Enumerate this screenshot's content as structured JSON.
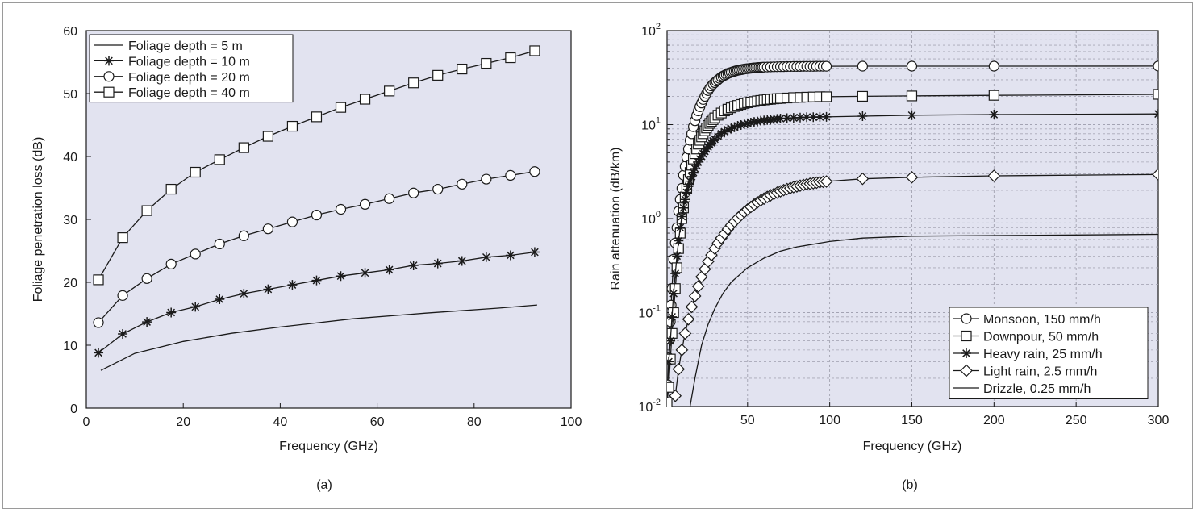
{
  "chart_data": [
    {
      "id": "a",
      "type": "line",
      "caption": "(a)",
      "xlabel": "Frequency (GHz)",
      "ylabel": "Foliage penetration loss (dB)",
      "xlim": [
        0,
        100
      ],
      "ylim": [
        0,
        60
      ],
      "xticks": [
        0,
        20,
        40,
        60,
        80,
        100
      ],
      "yticks": [
        0,
        10,
        20,
        30,
        40,
        50,
        60
      ],
      "grid": false,
      "legend": "top-left",
      "series": [
        {
          "name": "Foliage depth = 5 m",
          "marker": "none",
          "x": [
            3,
            10,
            20,
            30,
            40,
            55,
            70,
            85,
            93
          ],
          "y": [
            6.0,
            8.7,
            10.6,
            11.9,
            12.9,
            14.2,
            15.1,
            15.9,
            16.4
          ]
        },
        {
          "name": "Foliage depth = 10 m",
          "marker": "star",
          "x": [
            2.5,
            7.5,
            12.5,
            17.5,
            22.5,
            27.5,
            32.5,
            37.5,
            42.5,
            47.5,
            52.5,
            57.5,
            62.5,
            67.5,
            72.5,
            77.5,
            82.5,
            87.5,
            92.5
          ],
          "y": [
            8.8,
            11.8,
            13.7,
            15.2,
            16.1,
            17.3,
            18.2,
            18.9,
            19.6,
            20.3,
            21.0,
            21.5,
            22.0,
            22.7,
            23.0,
            23.4,
            24.0,
            24.3,
            24.8
          ]
        },
        {
          "name": "Foliage depth = 20 m",
          "marker": "circle",
          "x": [
            2.5,
            7.5,
            12.5,
            17.5,
            22.5,
            27.5,
            32.5,
            37.5,
            42.5,
            47.5,
            52.5,
            57.5,
            62.5,
            67.5,
            72.5,
            77.5,
            82.5,
            87.5,
            92.5
          ],
          "y": [
            13.6,
            17.9,
            20.6,
            22.9,
            24.5,
            26.1,
            27.4,
            28.5,
            29.6,
            30.7,
            31.6,
            32.4,
            33.3,
            34.2,
            34.8,
            35.6,
            36.4,
            37.0,
            37.6
          ]
        },
        {
          "name": "Foliage depth = 40 m",
          "marker": "square",
          "x": [
            2.5,
            7.5,
            12.5,
            17.5,
            22.5,
            27.5,
            32.5,
            37.5,
            42.5,
            47.5,
            52.5,
            57.5,
            62.5,
            67.5,
            72.5,
            77.5,
            82.5,
            87.5,
            92.5
          ],
          "y": [
            20.4,
            27.1,
            31.4,
            34.8,
            37.5,
            39.5,
            41.4,
            43.2,
            44.8,
            46.3,
            47.8,
            49.1,
            50.4,
            51.7,
            52.9,
            53.9,
            54.8,
            55.7,
            56.8
          ]
        }
      ]
    },
    {
      "id": "b",
      "type": "line",
      "caption": "(b)",
      "xlabel": "Frequency (GHz)",
      "ylabel": "Rain attenuation (dB/km)",
      "xscale": "linear",
      "yscale": "log",
      "xlim": [
        1,
        300
      ],
      "ylim": [
        0.01,
        100
      ],
      "xticks": [
        50,
        100,
        150,
        200,
        250,
        300
      ],
      "yticks": [
        {
          "value": 100,
          "base": "10",
          "exp": "2"
        },
        {
          "value": 10,
          "base": "10",
          "exp": "1"
        },
        {
          "value": 1,
          "base": "10",
          "exp": "0"
        },
        {
          "value": 0.1,
          "base": "10",
          "exp": "-1"
        },
        {
          "value": 0.01,
          "base": "10",
          "exp": "-2"
        }
      ],
      "grid": true,
      "legend": "bottom-right",
      "series": [
        {
          "name": "Monsoon, 150 mm/h",
          "marker": "circle",
          "x": [
            1,
            1.5,
            2,
            2.5,
            3,
            3.5,
            4,
            5,
            6,
            7,
            8,
            9,
            10,
            11,
            12,
            13,
            14,
            15,
            16,
            17,
            18,
            19,
            20,
            21,
            22,
            23,
            24,
            25,
            26,
            27,
            28,
            29,
            30,
            31,
            32,
            33,
            34,
            35,
            36,
            37,
            38,
            39,
            40,
            41,
            42,
            43,
            44,
            45,
            46,
            47,
            48,
            49,
            50,
            51,
            52,
            53,
            54,
            55,
            56,
            57,
            58,
            59,
            60,
            62,
            64,
            66,
            68,
            70,
            72,
            74,
            76,
            78,
            80,
            82,
            84,
            86,
            88,
            90,
            92,
            94,
            96,
            98,
            120,
            150,
            200,
            300
          ],
          "y": [
            0.011,
            0.017,
            0.033,
            0.052,
            0.08,
            0.12,
            0.18,
            0.37,
            0.55,
            0.8,
            1.2,
            1.6,
            2.1,
            2.9,
            3.6,
            4.5,
            5.5,
            6.8,
            8.0,
            9.5,
            11,
            12.5,
            14,
            15.5,
            17,
            18.5,
            20,
            21.5,
            23,
            24.5,
            25.8,
            27,
            28,
            29,
            30,
            31,
            32,
            32.8,
            33.5,
            34.2,
            34.9,
            35.5,
            36,
            36.5,
            37,
            37.4,
            37.8,
            38.1,
            38.4,
            38.7,
            39,
            39.2,
            39.4,
            39.6,
            39.8,
            40,
            40.2,
            40.3,
            40.5,
            40.6,
            40.7,
            40.8,
            40.9,
            41,
            41.1,
            41.2,
            41.3,
            41.4,
            41.4,
            41.5,
            41.5,
            41.6,
            41.6,
            41.6,
            41.7,
            41.7,
            41.7,
            41.7,
            41.8,
            41.8,
            41.8,
            41.8,
            41.9,
            41.9,
            41.9,
            42
          ]
        },
        {
          "name": "Downpour, 50 mm/h",
          "marker": "square",
          "x": [
            1,
            2,
            3,
            4,
            5,
            6,
            7,
            8,
            9,
            10,
            11,
            12,
            13,
            14,
            15,
            16,
            17,
            18,
            19,
            20,
            21,
            22,
            23,
            24,
            25,
            26,
            27,
            28,
            29,
            30,
            32,
            34,
            36,
            38,
            40,
            42,
            44,
            46,
            48,
            50,
            52,
            54,
            56,
            58,
            60,
            62,
            64,
            66,
            68,
            70,
            74,
            78,
            82,
            86,
            90,
            94,
            98,
            120,
            150,
            200,
            300
          ],
          "y": [
            0.011,
            0.016,
            0.032,
            0.06,
            0.1,
            0.18,
            0.3,
            0.48,
            0.7,
            1.0,
            1.3,
            1.7,
            2.1,
            2.6,
            3.1,
            3.7,
            4.3,
            4.9,
            5.5,
            6.2,
            6.8,
            7.4,
            8.0,
            8.6,
            9.2,
            9.8,
            10.3,
            10.8,
            11.3,
            11.8,
            12.6,
            13.3,
            14.0,
            14.6,
            15.1,
            15.6,
            16.0,
            16.4,
            16.8,
            17.1,
            17.4,
            17.6,
            17.9,
            18.1,
            18.3,
            18.5,
            18.6,
            18.8,
            18.9,
            19.0,
            19.2,
            19.4,
            19.5,
            19.6,
            19.7,
            19.8,
            19.8,
            20.0,
            20.2,
            20.5,
            21
          ]
        },
        {
          "name": "Heavy rain, 25 mm/h",
          "marker": "star",
          "x": [
            2,
            3,
            4,
            5,
            6,
            7,
            8,
            9,
            10,
            11,
            12,
            13,
            14,
            15,
            16,
            17,
            18,
            19,
            20,
            21,
            22,
            23,
            24,
            25,
            26,
            27,
            28,
            29,
            30,
            32,
            34,
            36,
            38,
            40,
            42,
            44,
            46,
            48,
            50,
            52,
            54,
            56,
            58,
            60,
            62,
            64,
            66,
            68,
            70,
            74,
            78,
            82,
            86,
            90,
            94,
            98,
            120,
            150,
            200,
            300
          ],
          "y": [
            0.03,
            0.05,
            0.09,
            0.16,
            0.26,
            0.4,
            0.58,
            0.8,
            1.05,
            1.3,
            1.6,
            1.9,
            2.2,
            2.5,
            2.8,
            3.1,
            3.4,
            3.7,
            4.0,
            4.3,
            4.6,
            4.9,
            5.2,
            5.5,
            5.8,
            6.1,
            6.4,
            6.7,
            7.0,
            7.5,
            8.0,
            8.4,
            8.8,
            9.1,
            9.4,
            9.7,
            9.9,
            10.1,
            10.3,
            10.5,
            10.7,
            10.8,
            11.0,
            11.1,
            11.2,
            11.3,
            11.4,
            11.5,
            11.6,
            11.7,
            11.8,
            11.9,
            12.0,
            12.0,
            12.1,
            12.1,
            12.3,
            12.6,
            12.8,
            13.0
          ]
        },
        {
          "name": "Light rain, 2.5 mm/h",
          "marker": "diamond",
          "x": [
            6,
            8,
            10,
            12,
            14,
            16,
            18,
            20,
            22,
            24,
            26,
            28,
            30,
            32,
            34,
            36,
            38,
            40,
            42,
            44,
            46,
            48,
            50,
            52,
            54,
            56,
            58,
            60,
            62,
            64,
            66,
            68,
            70,
            72,
            74,
            76,
            78,
            80,
            82,
            84,
            86,
            88,
            90,
            92,
            94,
            96,
            98,
            120,
            150,
            200,
            300
          ],
          "y": [
            0.013,
            0.025,
            0.04,
            0.06,
            0.085,
            0.115,
            0.15,
            0.19,
            0.24,
            0.29,
            0.35,
            0.41,
            0.48,
            0.55,
            0.62,
            0.69,
            0.77,
            0.85,
            0.93,
            1.01,
            1.09,
            1.17,
            1.25,
            1.33,
            1.41,
            1.49,
            1.56,
            1.63,
            1.7,
            1.77,
            1.83,
            1.89,
            1.95,
            2.01,
            2.06,
            2.11,
            2.16,
            2.2,
            2.24,
            2.28,
            2.32,
            2.35,
            2.38,
            2.41,
            2.44,
            2.46,
            2.48,
            2.65,
            2.75,
            2.85,
            2.95
          ]
        },
        {
          "name": "Drizzle, 0.25 mm/h",
          "marker": "none",
          "x": [
            15,
            18,
            22,
            26,
            30,
            35,
            40,
            50,
            60,
            70,
            80,
            100,
            120,
            150,
            200,
            250,
            300
          ],
          "y": [
            0.01,
            0.02,
            0.045,
            0.075,
            0.11,
            0.16,
            0.21,
            0.3,
            0.38,
            0.45,
            0.5,
            0.57,
            0.62,
            0.65,
            0.66,
            0.67,
            0.68
          ]
        }
      ]
    }
  ]
}
